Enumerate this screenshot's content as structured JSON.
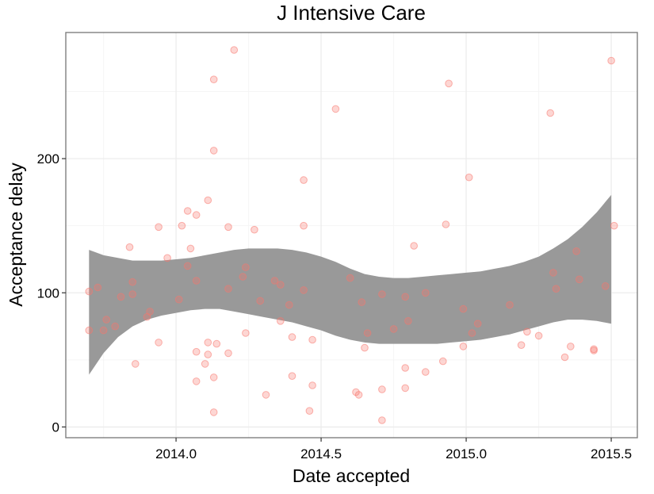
{
  "chart_data": {
    "type": "scatter",
    "title": "J Intensive Care",
    "xlabel": "Date accepted",
    "ylabel": "Acceptance delay",
    "xlim": [
      2013.62,
      2015.59
    ],
    "ylim": [
      -8,
      294
    ],
    "x_ticks": [
      2014.0,
      2014.5,
      2015.0,
      2015.5
    ],
    "x_tick_labels": [
      "2014.0",
      "2014.5",
      "2015.0",
      "2015.5"
    ],
    "y_ticks": [
      0,
      100,
      200
    ],
    "y_tick_labels": [
      "0",
      "100",
      "200"
    ],
    "grid": true,
    "legend": "none",
    "colors": {
      "points": "#f8766d",
      "ribbon": "#999999",
      "panel_border": "#7f7f7f",
      "grid_major": "#ebebeb",
      "grid_minor": "#f5f5f5"
    },
    "points": [
      {
        "x": 2013.7,
        "y": 101
      },
      {
        "x": 2013.7,
        "y": 72
      },
      {
        "x": 2013.73,
        "y": 104
      },
      {
        "x": 2013.75,
        "y": 72
      },
      {
        "x": 2013.76,
        "y": 80
      },
      {
        "x": 2013.79,
        "y": 75
      },
      {
        "x": 2013.81,
        "y": 97
      },
      {
        "x": 2013.84,
        "y": 134
      },
      {
        "x": 2013.85,
        "y": 108
      },
      {
        "x": 2013.85,
        "y": 99
      },
      {
        "x": 2013.86,
        "y": 47
      },
      {
        "x": 2013.9,
        "y": 82
      },
      {
        "x": 2013.91,
        "y": 86
      },
      {
        "x": 2013.94,
        "y": 149
      },
      {
        "x": 2013.94,
        "y": 63
      },
      {
        "x": 2013.97,
        "y": 126
      },
      {
        "x": 2014.01,
        "y": 95
      },
      {
        "x": 2014.02,
        "y": 150
      },
      {
        "x": 2014.04,
        "y": 161
      },
      {
        "x": 2014.04,
        "y": 120
      },
      {
        "x": 2014.05,
        "y": 133
      },
      {
        "x": 2014.07,
        "y": 158
      },
      {
        "x": 2014.07,
        "y": 109
      },
      {
        "x": 2014.07,
        "y": 56
      },
      {
        "x": 2014.07,
        "y": 34
      },
      {
        "x": 2014.1,
        "y": 47
      },
      {
        "x": 2014.11,
        "y": 54
      },
      {
        "x": 2014.11,
        "y": 63
      },
      {
        "x": 2014.11,
        "y": 169
      },
      {
        "x": 2014.13,
        "y": 259
      },
      {
        "x": 2014.13,
        "y": 206
      },
      {
        "x": 2014.13,
        "y": 37
      },
      {
        "x": 2014.13,
        "y": 11
      },
      {
        "x": 2014.14,
        "y": 62
      },
      {
        "x": 2014.18,
        "y": 149
      },
      {
        "x": 2014.18,
        "y": 103
      },
      {
        "x": 2014.18,
        "y": 55
      },
      {
        "x": 2014.2,
        "y": 281
      },
      {
        "x": 2014.23,
        "y": 112
      },
      {
        "x": 2014.24,
        "y": 119
      },
      {
        "x": 2014.24,
        "y": 70
      },
      {
        "x": 2014.27,
        "y": 147
      },
      {
        "x": 2014.29,
        "y": 94
      },
      {
        "x": 2014.31,
        "y": 24
      },
      {
        "x": 2014.34,
        "y": 109
      },
      {
        "x": 2014.36,
        "y": 106
      },
      {
        "x": 2014.36,
        "y": 79
      },
      {
        "x": 2014.39,
        "y": 91
      },
      {
        "x": 2014.4,
        "y": 67
      },
      {
        "x": 2014.4,
        "y": 38
      },
      {
        "x": 2014.44,
        "y": 184
      },
      {
        "x": 2014.44,
        "y": 150
      },
      {
        "x": 2014.44,
        "y": 102
      },
      {
        "x": 2014.47,
        "y": 65
      },
      {
        "x": 2014.47,
        "y": 31
      },
      {
        "x": 2014.46,
        "y": 12
      },
      {
        "x": 2014.55,
        "y": 237
      },
      {
        "x": 2014.6,
        "y": 111
      },
      {
        "x": 2014.62,
        "y": 26
      },
      {
        "x": 2014.63,
        "y": 24
      },
      {
        "x": 2014.64,
        "y": 93
      },
      {
        "x": 2014.65,
        "y": 59
      },
      {
        "x": 2014.66,
        "y": 70
      },
      {
        "x": 2014.71,
        "y": 99
      },
      {
        "x": 2014.71,
        "y": 28
      },
      {
        "x": 2014.71,
        "y": 5
      },
      {
        "x": 2014.75,
        "y": 73
      },
      {
        "x": 2014.79,
        "y": 97
      },
      {
        "x": 2014.79,
        "y": 44
      },
      {
        "x": 2014.79,
        "y": 29
      },
      {
        "x": 2014.8,
        "y": 79
      },
      {
        "x": 2014.82,
        "y": 135
      },
      {
        "x": 2014.86,
        "y": 100
      },
      {
        "x": 2014.86,
        "y": 41
      },
      {
        "x": 2014.92,
        "y": 49
      },
      {
        "x": 2014.93,
        "y": 151
      },
      {
        "x": 2014.94,
        "y": 256
      },
      {
        "x": 2014.99,
        "y": 88
      },
      {
        "x": 2014.99,
        "y": 60
      },
      {
        "x": 2015.01,
        "y": 186
      },
      {
        "x": 2015.02,
        "y": 70
      },
      {
        "x": 2015.04,
        "y": 77
      },
      {
        "x": 2015.15,
        "y": 91
      },
      {
        "x": 2015.19,
        "y": 61
      },
      {
        "x": 2015.21,
        "y": 71
      },
      {
        "x": 2015.25,
        "y": 68
      },
      {
        "x": 2015.29,
        "y": 234
      },
      {
        "x": 2015.3,
        "y": 115
      },
      {
        "x": 2015.31,
        "y": 103
      },
      {
        "x": 2015.34,
        "y": 52
      },
      {
        "x": 2015.36,
        "y": 60
      },
      {
        "x": 2015.38,
        "y": 131
      },
      {
        "x": 2015.39,
        "y": 110
      },
      {
        "x": 2015.44,
        "y": 58
      },
      {
        "x": 2015.44,
        "y": 57
      },
      {
        "x": 2015.48,
        "y": 105
      },
      {
        "x": 2015.5,
        "y": 273
      },
      {
        "x": 2015.51,
        "y": 150
      }
    ],
    "smooth_band": [
      {
        "x": 2013.7,
        "lower": 39,
        "upper": 132
      },
      {
        "x": 2013.75,
        "lower": 55,
        "upper": 128
      },
      {
        "x": 2013.8,
        "lower": 67,
        "upper": 126
      },
      {
        "x": 2013.85,
        "lower": 75,
        "upper": 124
      },
      {
        "x": 2013.9,
        "lower": 80,
        "upper": 124
      },
      {
        "x": 2013.95,
        "lower": 83,
        "upper": 124
      },
      {
        "x": 2014.0,
        "lower": 85,
        "upper": 125
      },
      {
        "x": 2014.05,
        "lower": 87,
        "upper": 126
      },
      {
        "x": 2014.1,
        "lower": 88,
        "upper": 128
      },
      {
        "x": 2014.15,
        "lower": 88,
        "upper": 130
      },
      {
        "x": 2014.2,
        "lower": 86,
        "upper": 132
      },
      {
        "x": 2014.25,
        "lower": 84,
        "upper": 133
      },
      {
        "x": 2014.3,
        "lower": 82,
        "upper": 133
      },
      {
        "x": 2014.35,
        "lower": 80,
        "upper": 133
      },
      {
        "x": 2014.4,
        "lower": 78,
        "upper": 132
      },
      {
        "x": 2014.45,
        "lower": 75,
        "upper": 130
      },
      {
        "x": 2014.5,
        "lower": 72,
        "upper": 127
      },
      {
        "x": 2014.55,
        "lower": 68,
        "upper": 123
      },
      {
        "x": 2014.6,
        "lower": 65,
        "upper": 118
      },
      {
        "x": 2014.65,
        "lower": 63,
        "upper": 114
      },
      {
        "x": 2014.7,
        "lower": 62,
        "upper": 112
      },
      {
        "x": 2014.75,
        "lower": 62,
        "upper": 111
      },
      {
        "x": 2014.8,
        "lower": 62,
        "upper": 111
      },
      {
        "x": 2014.85,
        "lower": 62,
        "upper": 112
      },
      {
        "x": 2014.9,
        "lower": 62,
        "upper": 113
      },
      {
        "x": 2014.95,
        "lower": 63,
        "upper": 114
      },
      {
        "x": 2015.0,
        "lower": 64,
        "upper": 115
      },
      {
        "x": 2015.05,
        "lower": 65,
        "upper": 116
      },
      {
        "x": 2015.1,
        "lower": 67,
        "upper": 118
      },
      {
        "x": 2015.15,
        "lower": 69,
        "upper": 120
      },
      {
        "x": 2015.2,
        "lower": 72,
        "upper": 123
      },
      {
        "x": 2015.25,
        "lower": 75,
        "upper": 127
      },
      {
        "x": 2015.3,
        "lower": 78,
        "upper": 133
      },
      {
        "x": 2015.35,
        "lower": 80,
        "upper": 140
      },
      {
        "x": 2015.4,
        "lower": 80,
        "upper": 149
      },
      {
        "x": 2015.45,
        "lower": 79,
        "upper": 160
      },
      {
        "x": 2015.5,
        "lower": 77,
        "upper": 173
      }
    ]
  }
}
